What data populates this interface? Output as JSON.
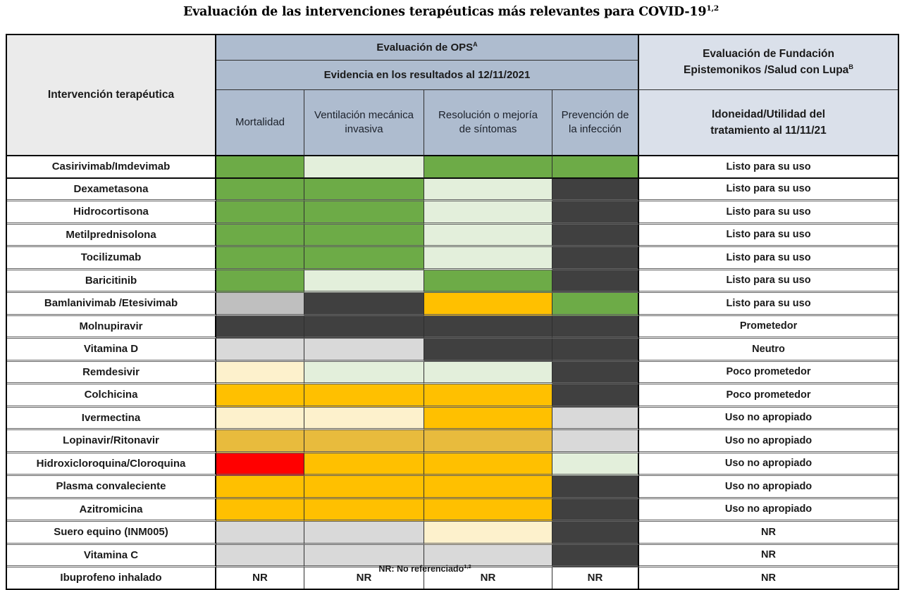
{
  "chart_data": {
    "type": "table",
    "title": "Evaluación de las intervenciones terapéuticas más relevantes para COVID-19",
    "title_sup": "1,2",
    "header": {
      "intervention": "Intervención terapéutica",
      "ops_title": "Evaluación de OPS",
      "ops_sup": "A",
      "ops_subtitle": "Evidencia en los resultados al 12/11/2021",
      "ops_columns": [
        "Mortalidad",
        "Ventilación mecánica invasiva",
        "Resolución o mejoría de síntomas",
        "Prevención de la infección"
      ],
      "fundacion_line1": "Evaluación de Fundación",
      "fundacion_line2": "Epistemonikos /Salud con Lupa",
      "fundacion_sup": "B",
      "fundacion_subtitle": "Idoneidad/Utilidad del tratamiento al 11/11/21"
    },
    "colors": {
      "green": "#6dab47",
      "light_green": "#e3efdb",
      "dark_gray": "#404040",
      "mid_gray": "#bfbfbf",
      "light_gray": "#d9d9d9",
      "orange": "#ffc000",
      "cream": "#fdf1cc",
      "gold": "#e8bb3d",
      "red": "#ff0000",
      "nr": "#ffffff",
      "header_ops": "#aebccf",
      "header_fundacion": "#dae0ea",
      "header_intervention": "#ebebeb"
    },
    "nr_label": "NR",
    "rows": [
      {
        "name": "Casirivimab/Imdevimab",
        "cells": [
          "green",
          "light_green",
          "green",
          "green"
        ],
        "eval": "Listo para su uso"
      },
      {
        "name": "Dexametasona",
        "cells": [
          "green",
          "green",
          "light_green",
          "dark_gray"
        ],
        "eval": "Listo para su uso"
      },
      {
        "name": "Hidrocortisona",
        "cells": [
          "green",
          "green",
          "light_green",
          "dark_gray"
        ],
        "eval": "Listo para su uso"
      },
      {
        "name": "Metilprednisolona",
        "cells": [
          "green",
          "green",
          "light_green",
          "dark_gray"
        ],
        "eval": "Listo para su uso"
      },
      {
        "name": "Tocilizumab",
        "cells": [
          "green",
          "green",
          "light_green",
          "dark_gray"
        ],
        "eval": "Listo para su uso"
      },
      {
        "name": "Baricitinib",
        "cells": [
          "green",
          "light_green",
          "green",
          "dark_gray"
        ],
        "eval": "Listo para su uso"
      },
      {
        "name": "Bamlanivimab /Etesivimab",
        "cells": [
          "mid_gray",
          "dark_gray",
          "orange",
          "green"
        ],
        "eval": "Listo para su uso"
      },
      {
        "name": "Molnupiravir",
        "cells": [
          "dark_gray",
          "dark_gray",
          "dark_gray",
          "dark_gray"
        ],
        "eval": "Prometedor"
      },
      {
        "name": "Vitamina D",
        "cells": [
          "light_gray",
          "light_gray",
          "dark_gray",
          "dark_gray"
        ],
        "eval": "Neutro"
      },
      {
        "name": "Remdesivir",
        "cells": [
          "cream",
          "light_green",
          "light_green",
          "dark_gray"
        ],
        "eval": "Poco prometedor"
      },
      {
        "name": "Colchicina",
        "cells": [
          "orange",
          "orange",
          "orange",
          "dark_gray"
        ],
        "eval": "Poco prometedor"
      },
      {
        "name": "Ivermectina",
        "cells": [
          "cream",
          "cream",
          "orange",
          "light_gray"
        ],
        "eval": "Uso no apropiado"
      },
      {
        "name": "Lopinavir/Ritonavir",
        "cells": [
          "gold",
          "gold",
          "gold",
          "light_gray"
        ],
        "eval": "Uso no apropiado"
      },
      {
        "name": "Hidroxicloroquina/Cloroquina",
        "cells": [
          "red",
          "orange",
          "orange",
          "light_green"
        ],
        "eval": "Uso no apropiado"
      },
      {
        "name": "Plasma convaleciente",
        "cells": [
          "orange",
          "orange",
          "orange",
          "dark_gray"
        ],
        "eval": "Uso no apropiado"
      },
      {
        "name": "Azitromicina",
        "cells": [
          "orange",
          "orange",
          "orange",
          "dark_gray"
        ],
        "eval": "Uso no apropiado"
      },
      {
        "name": "Suero equino (INM005)",
        "cells": [
          "light_gray",
          "light_gray",
          "cream",
          "dark_gray"
        ],
        "eval": "NR"
      },
      {
        "name": "Vitamina C",
        "cells": [
          "light_gray",
          "light_gray",
          "light_gray",
          "dark_gray"
        ],
        "eval": "NR"
      },
      {
        "name": "Ibuprofeno inhalado",
        "cells": [
          "nr",
          "nr",
          "nr",
          "nr"
        ],
        "eval": "NR"
      }
    ],
    "footnote": "NR: No referenciado",
    "footnote_sup": "1,2"
  }
}
